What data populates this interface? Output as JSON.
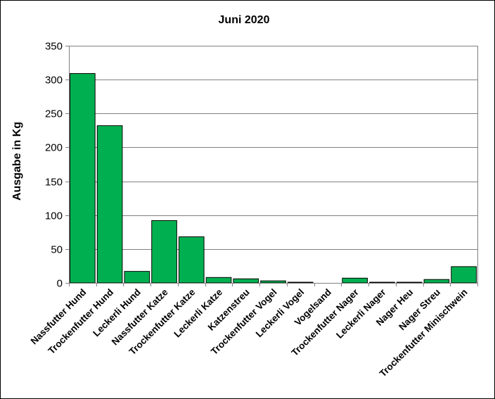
{
  "chart_data": {
    "type": "bar",
    "title": "Juni 2020",
    "xlabel": "",
    "ylabel": "Ausgabe in Kg",
    "ylim": [
      0,
      350
    ],
    "yticks": [
      0,
      50,
      100,
      150,
      200,
      250,
      300,
      350
    ],
    "grid": true,
    "legend": "none",
    "categories": [
      "Nassfutter Hund",
      "Trockenfutter Hund",
      "Leckerli Hund",
      "Nassfutter Katze",
      "Trockenfutter Katze",
      "Leckerli Katze",
      "Katzenstreu",
      "Trockenfutter Vogel",
      "Leckerli Vogel",
      "Vogelsand",
      "Trockenfutter Nager",
      "Leckerli Nager",
      "Nager Heu",
      "Nager Streu",
      "Trockenfutter Minischwein"
    ],
    "values": [
      309,
      232,
      17,
      92,
      68,
      8,
      6,
      3,
      1,
      0,
      7,
      1,
      1,
      5,
      24
    ],
    "bar_color": "#00b050",
    "bar_border_color": "#000000",
    "grid_color": "#808080"
  }
}
